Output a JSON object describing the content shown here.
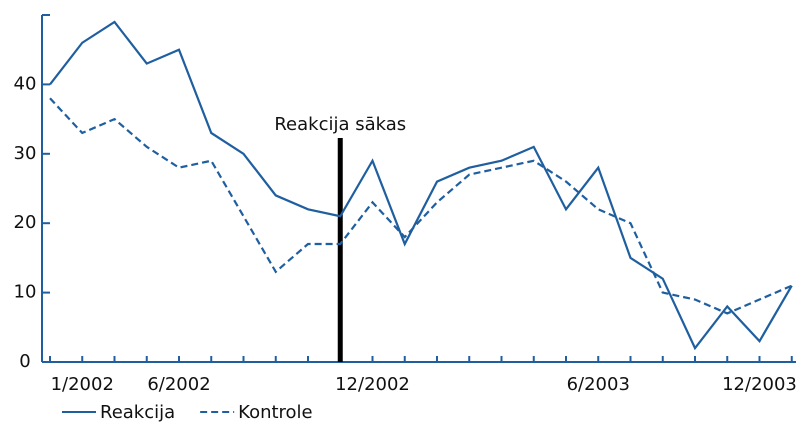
{
  "chart_data": {
    "type": "line",
    "categories": [
      null,
      "1/2002",
      null,
      null,
      "6/2002",
      null,
      null,
      null,
      null,
      null,
      "12/2002",
      null,
      null,
      null,
      null,
      null,
      null,
      "6/2003",
      null,
      null,
      null,
      null,
      "12/2003",
      null
    ],
    "series": [
      {
        "name": "Reakcija",
        "color": "#1f5fa0",
        "style": "solid",
        "values": [
          40,
          46,
          49,
          43,
          45,
          33,
          30,
          24,
          22,
          21,
          29,
          17,
          26,
          28,
          29,
          31,
          22,
          28,
          15,
          12,
          2,
          8,
          3,
          11
        ]
      },
      {
        "name": "Kontrole",
        "color": "#1f5fa0",
        "style": "dashed",
        "values": [
          38,
          33,
          35,
          31,
          28,
          29,
          21,
          13,
          17,
          17,
          23,
          18,
          23,
          27,
          28,
          29,
          26,
          22,
          20,
          10,
          9,
          7,
          9,
          11
        ]
      }
    ],
    "annotation": {
      "text": "Reakcija sākas",
      "x": 9
    },
    "ylim": [
      0,
      50
    ],
    "yticks": [
      0,
      10,
      20,
      30,
      40
    ],
    "legend": "bottom"
  }
}
